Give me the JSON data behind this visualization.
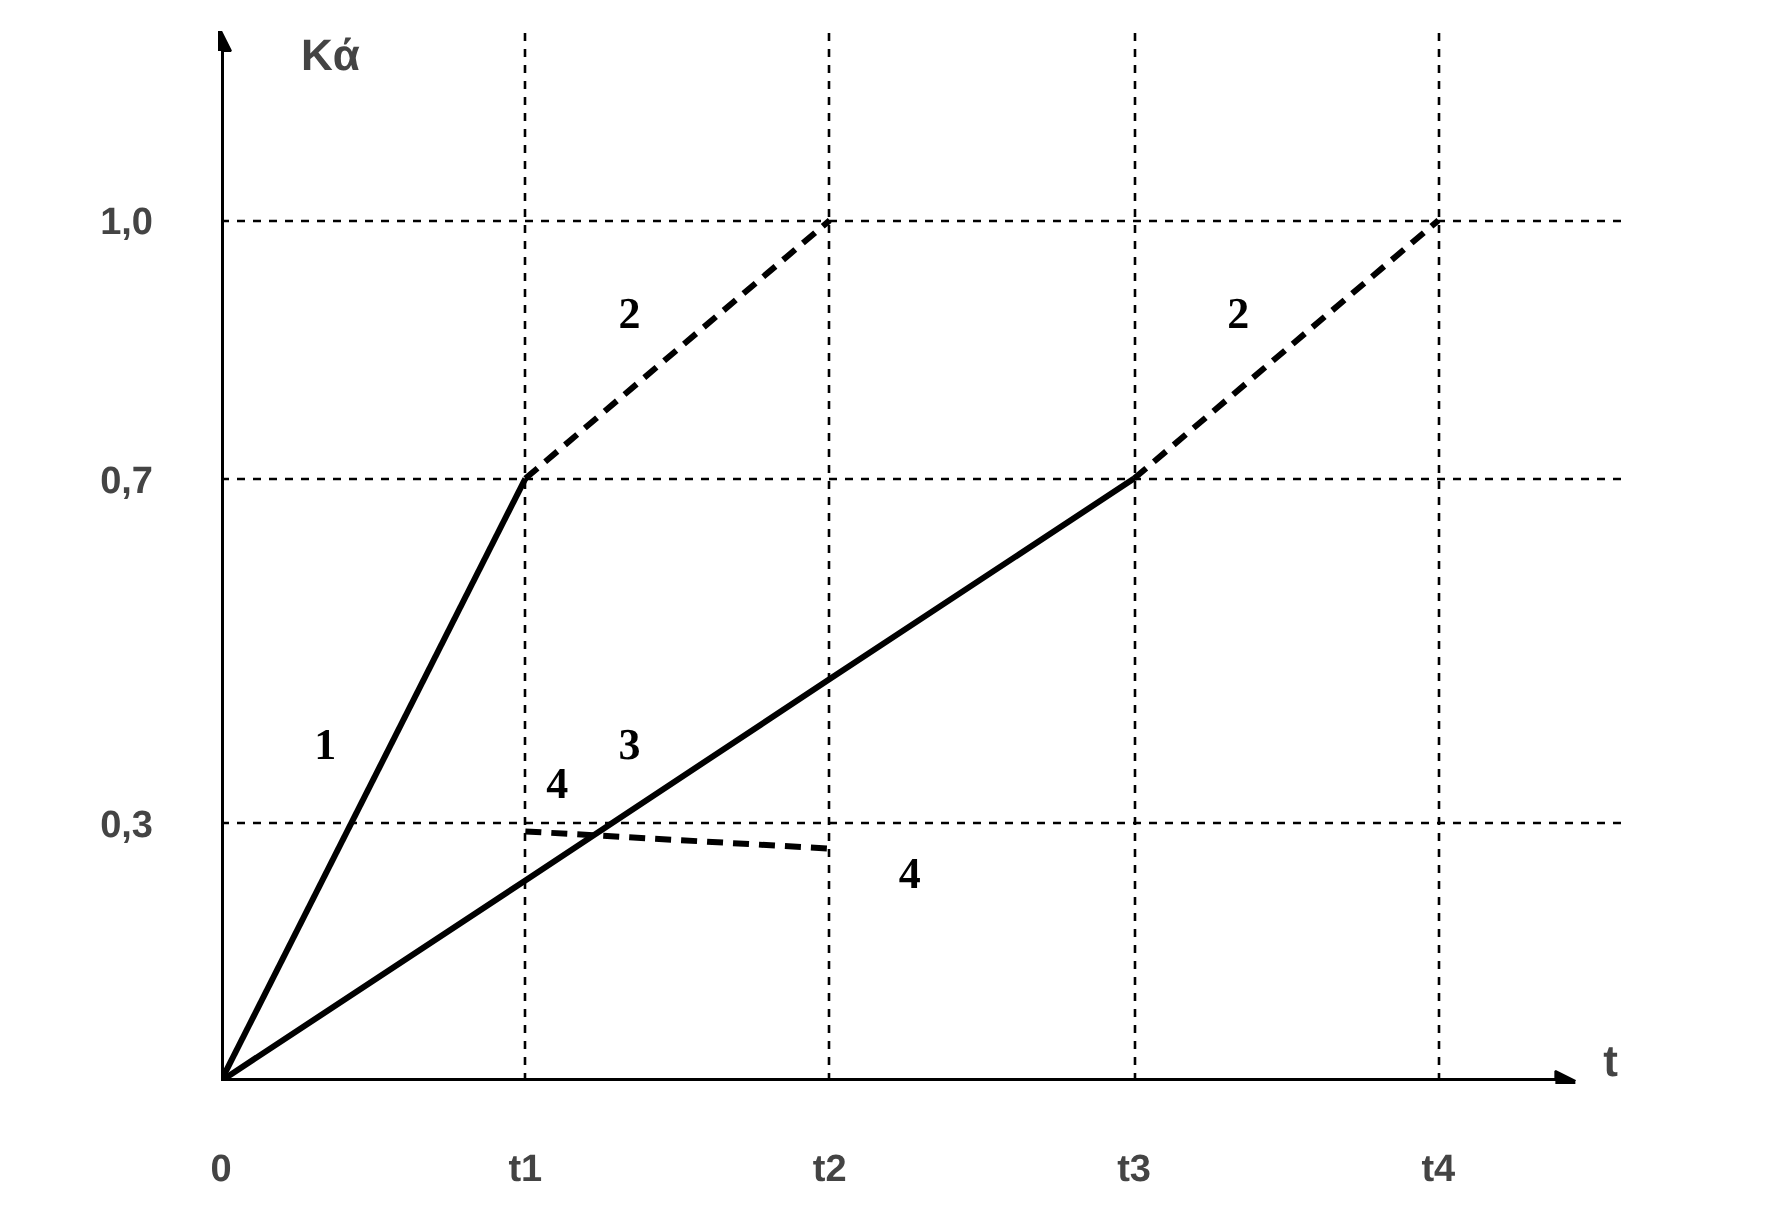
{
  "chart_data": {
    "type": "line",
    "xlabel": "t",
    "ylabel": "Kά",
    "categories": [
      "0",
      "t1",
      "t2",
      "t3",
      "t4"
    ],
    "ylim": [
      0,
      1.22
    ],
    "yticks": [
      {
        "value": 0.3,
        "label": "0,3"
      },
      {
        "value": 0.7,
        "label": "0,7"
      },
      {
        "value": 1.0,
        "label": "1,0"
      }
    ],
    "grid": true,
    "series": [
      {
        "name": "1",
        "color": "#000000",
        "line_style": "solid",
        "values": [
          0,
          0.7,
          null,
          null,
          null
        ]
      },
      {
        "name": "2",
        "color": "#000000",
        "line_style": "dashed",
        "values": [
          null,
          0.7,
          1.0,
          null,
          null
        ]
      },
      {
        "name": "2",
        "color": "#000000",
        "line_style": "dashed",
        "values": [
          null,
          null,
          null,
          0.7,
          1.0
        ]
      },
      {
        "name": "3",
        "color": "#000000",
        "line_style": "solid",
        "values": [
          0,
          0.233,
          0.467,
          0.7,
          null
        ]
      },
      {
        "name": "4",
        "color": "#000000",
        "line_style": "dashed",
        "values": [
          null,
          0.29,
          0.27,
          null,
          null
        ]
      }
    ]
  }
}
